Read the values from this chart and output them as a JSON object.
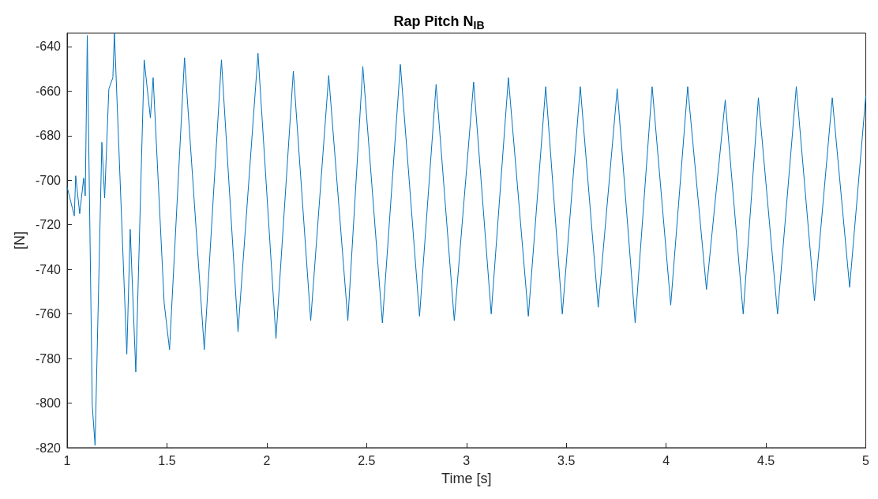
{
  "chart_data": {
    "type": "line",
    "title": "Rap Pitch N$_{IB}$",
    "xlabel": "Time [s]",
    "ylabel": "[N]",
    "x": [
      1.0,
      1.036,
      1.043,
      1.063,
      1.083,
      1.091,
      1.101,
      1.126,
      1.14,
      1.174,
      1.188,
      1.209,
      1.229,
      1.237,
      1.299,
      1.316,
      1.344,
      1.386,
      1.417,
      1.431,
      1.486,
      1.513,
      1.588,
      1.687,
      1.773,
      1.856,
      1.956,
      2.046,
      2.133,
      2.22,
      2.31,
      2.406,
      2.481,
      2.579,
      2.669,
      2.765,
      2.848,
      2.939,
      3.036,
      3.124,
      3.21,
      3.31,
      3.397,
      3.48,
      3.57,
      3.66,
      3.755,
      3.845,
      3.93,
      4.023,
      4.108,
      4.202,
      4.296,
      4.386,
      4.462,
      4.558,
      4.652,
      4.743,
      4.832,
      4.919,
      5.0
    ],
    "series": [
      {
        "color": "#0072bd",
        "values": [
          -703,
          -716,
          -698,
          -715,
          -699,
          -707,
          -635,
          -801,
          -819,
          -683,
          -708,
          -659,
          -654,
          -634,
          -778,
          -722,
          -786,
          -646,
          -672,
          -654,
          -755,
          -776,
          -645,
          -776,
          -646,
          -768,
          -643,
          -771,
          -651,
          -763,
          -653,
          -763,
          -649,
          -764,
          -648,
          -761,
          -657,
          -763,
          -656,
          -760,
          -654,
          -761,
          -658,
          -760,
          -658,
          -757,
          -659,
          -764,
          -658,
          -756,
          -658,
          -749,
          -664,
          -760,
          -663,
          -760,
          -658,
          -754,
          -663,
          -748,
          -662
        ]
      }
    ],
    "xlim": [
      1,
      5
    ],
    "ylim": [
      -820,
      -634
    ],
    "xticks": [
      1,
      1.5,
      2,
      2.5,
      3,
      3.5,
      4,
      4.5,
      5
    ],
    "yticks": [
      -820,
      -800,
      -780,
      -760,
      -740,
      -720,
      -700,
      -680,
      -660,
      -640
    ],
    "grid": false
  }
}
